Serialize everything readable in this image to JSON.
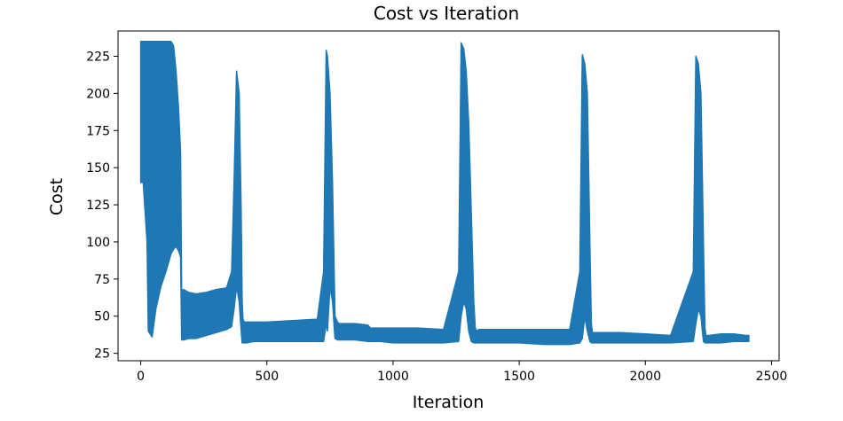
{
  "chart_data": {
    "type": "line",
    "title": "Cost vs Iteration",
    "xlabel": "Iteration",
    "ylabel": "Cost",
    "xlim": [
      -90,
      2530
    ],
    "ylim": [
      20,
      242
    ],
    "xticks": [
      0,
      500,
      1000,
      1500,
      2000,
      2500
    ],
    "yticks": [
      25,
      50,
      75,
      100,
      125,
      150,
      175,
      200,
      225
    ],
    "grid": false,
    "legend": "none",
    "color": "#1f77b4",
    "series": [
      {
        "name": "",
        "envelope": {
          "x": [
            0,
            10,
            25,
            30,
            45,
            60,
            80,
            100,
            120,
            130,
            140,
            150,
            158,
            162,
            170,
            190,
            220,
            260,
            300,
            340,
            360,
            370,
            380,
            390,
            398,
            402,
            405,
            410,
            420,
            450,
            500,
            600,
            700,
            725,
            735,
            740,
            750,
            760,
            770,
            780,
            786,
            790,
            800,
            850,
            900,
            910,
            950,
            1000,
            1100,
            1200,
            1260,
            1270,
            1280,
            1290,
            1300,
            1310,
            1320,
            1326,
            1332,
            1340,
            1400,
            1500,
            1600,
            1700,
            1740,
            1750,
            1760,
            1770,
            1780,
            1786,
            1790,
            1800,
            1900,
            2000,
            2100,
            2190,
            2200,
            2210,
            2220,
            2230,
            2236,
            2240,
            2250,
            2300,
            2350,
            2400,
            2410
          ],
          "upper": [
            235,
            235,
            235,
            235,
            235,
            235,
            235,
            235,
            235,
            232,
            215,
            190,
            160,
            67,
            68,
            66,
            65,
            66,
            68,
            69,
            80,
            140,
            215,
            200,
            120,
            60,
            48,
            46,
            46,
            46,
            46,
            47,
            48,
            80,
            229,
            225,
            200,
            140,
            50,
            46,
            45,
            45,
            45,
            45,
            44,
            42,
            42,
            42,
            42,
            41,
            80,
            234,
            230,
            215,
            180,
            120,
            60,
            42,
            40,
            41,
            41,
            41,
            41,
            41,
            80,
            226,
            220,
            200,
            100,
            45,
            39,
            39,
            39,
            38,
            37,
            80,
            225,
            220,
            200,
            100,
            42,
            37,
            37,
            38,
            38,
            37,
            37
          ],
          "lower": [
            140,
            140,
            100,
            40,
            36,
            55,
            70,
            80,
            92,
            95,
            97,
            94,
            90,
            34,
            34,
            35,
            35,
            37,
            39,
            41,
            43,
            55,
            70,
            60,
            40,
            32,
            32,
            32,
            32,
            33,
            33,
            33,
            33,
            33,
            45,
            40,
            70,
            60,
            35,
            34,
            34,
            34,
            34,
            34,
            33,
            33,
            33,
            32,
            32,
            32,
            33,
            50,
            60,
            55,
            40,
            33,
            32,
            32,
            32,
            32,
            32,
            32,
            31,
            31,
            32,
            35,
            50,
            40,
            33,
            32,
            32,
            32,
            32,
            32,
            32,
            33,
            45,
            55,
            50,
            33,
            32,
            32,
            32,
            32,
            33,
            33,
            33
          ]
        }
      }
    ]
  }
}
